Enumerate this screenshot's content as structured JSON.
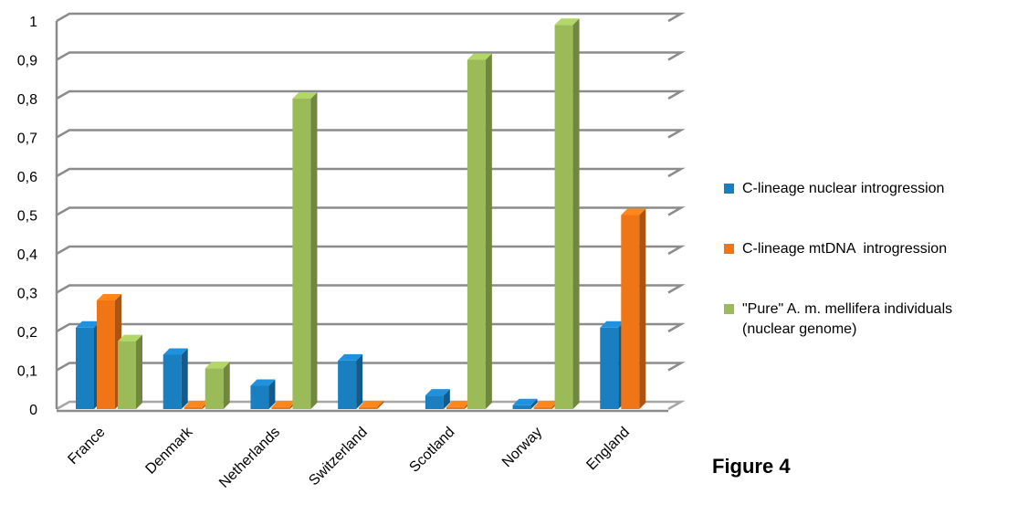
{
  "figure_label": "Figure 4",
  "chart_data": {
    "type": "bar",
    "title": "",
    "xlabel": "",
    "ylabel": "",
    "ylim": [
      0,
      1
    ],
    "yticks": [
      "0",
      "0,1",
      "0,2",
      "0,3",
      "0,4",
      "0,5",
      "0,6",
      "0,7",
      "0,8",
      "0,9",
      "1"
    ],
    "categories": [
      "France",
      "Denmark",
      "Netherlands",
      "Switzerland",
      "Scotland",
      "Norway",
      "England"
    ],
    "grid": true,
    "legend_position": "right",
    "series": [
      {
        "name": "C-lineage nuclear introgression",
        "color": "#1a7fc1",
        "values": [
          0.21,
          0.14,
          0.06,
          0.125,
          0.035,
          0.01,
          0.21
        ]
      },
      {
        "name": "C-lineage mtDNA  introgression",
        "color": "#f07516",
        "values": [
          0.28,
          0.005,
          0.005,
          0.005,
          0.005,
          0.005,
          0.5
        ]
      },
      {
        "name": "\"Pure\" A. m. mellifera individuals\n(nuclear genome)",
        "color": "#9bbb59",
        "values": [
          0.175,
          0.105,
          0.8,
          0.0,
          0.9,
          0.99,
          0.0
        ]
      }
    ]
  }
}
